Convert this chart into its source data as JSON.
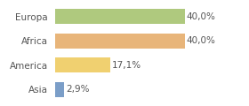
{
  "categories": [
    "Europa",
    "Africa",
    "America",
    "Asia"
  ],
  "values": [
    40.0,
    40.0,
    17.1,
    2.9
  ],
  "labels": [
    "40,0%",
    "40,0%",
    "17,1%",
    "2,9%"
  ],
  "bar_colors": [
    "#afc97e",
    "#e8b57a",
    "#f0d070",
    "#7b9ec8"
  ],
  "background_color": "#ffffff",
  "xlim": [
    0,
    46
  ],
  "bar_height": 0.62,
  "fontsize": 7.5,
  "label_fontsize": 7.5,
  "text_color": "#555555",
  "grid_color": "#dddddd"
}
